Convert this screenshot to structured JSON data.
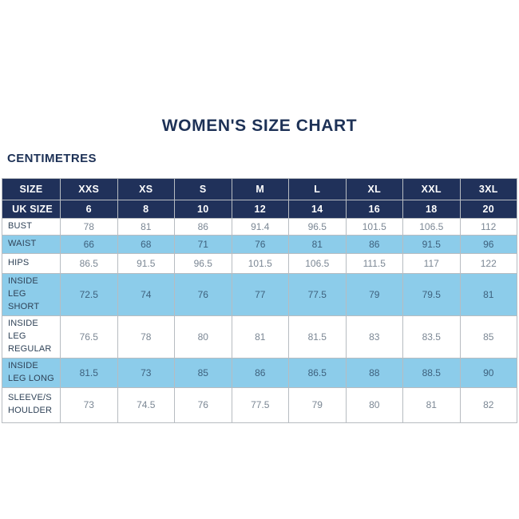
{
  "colors": {
    "navy": "#20315a",
    "light_blue": "#8cccea",
    "title_text": "#1d3156",
    "label_text": "#2f4257",
    "value_text": "#7b8794",
    "value_text_blue": "#3e617d",
    "border": "#b7bcc1"
  },
  "chart_data": {
    "type": "table",
    "title": "WOMEN'S SIZE CHART",
    "unit": "CENTIMETRES",
    "columns": [
      "SIZE",
      "XXS",
      "XS",
      "S",
      "M",
      "L",
      "XL",
      "XXL",
      "3XL"
    ],
    "rows": [
      {
        "label": "UK SIZE",
        "values": [
          "6",
          "8",
          "10",
          "12",
          "14",
          "16",
          "18",
          "20"
        ]
      },
      {
        "label": "BUST",
        "values": [
          "78",
          "81",
          "86",
          "91.4",
          "96.5",
          "101.5",
          "106.5",
          "112"
        ]
      },
      {
        "label": "WAIST",
        "values": [
          "66",
          "68",
          "71",
          "76",
          "81",
          "86",
          "91.5",
          "96"
        ]
      },
      {
        "label": "HIPS",
        "values": [
          "86.5",
          "91.5",
          "96.5",
          "101.5",
          "106.5",
          "111.5",
          "117",
          "122"
        ]
      },
      {
        "label": "INSIDE LEG SHORT",
        "values": [
          "72.5",
          "74",
          "76",
          "77",
          "77.5",
          "79",
          "79.5",
          "81"
        ]
      },
      {
        "label": "INSIDE LEG REGULAR",
        "values": [
          "76.5",
          "78",
          "80",
          "81",
          "81.5",
          "83",
          "83.5",
          "85"
        ]
      },
      {
        "label": "INSIDE LEG LONG",
        "values": [
          "81.5",
          "73",
          "85",
          "86",
          "86.5",
          "88",
          "88.5",
          "90"
        ]
      },
      {
        "label": "SLEEVE/SHOULDER",
        "values": [
          "73",
          "74.5",
          "76",
          "77.5",
          "79",
          "80",
          "81",
          "82"
        ]
      }
    ]
  }
}
